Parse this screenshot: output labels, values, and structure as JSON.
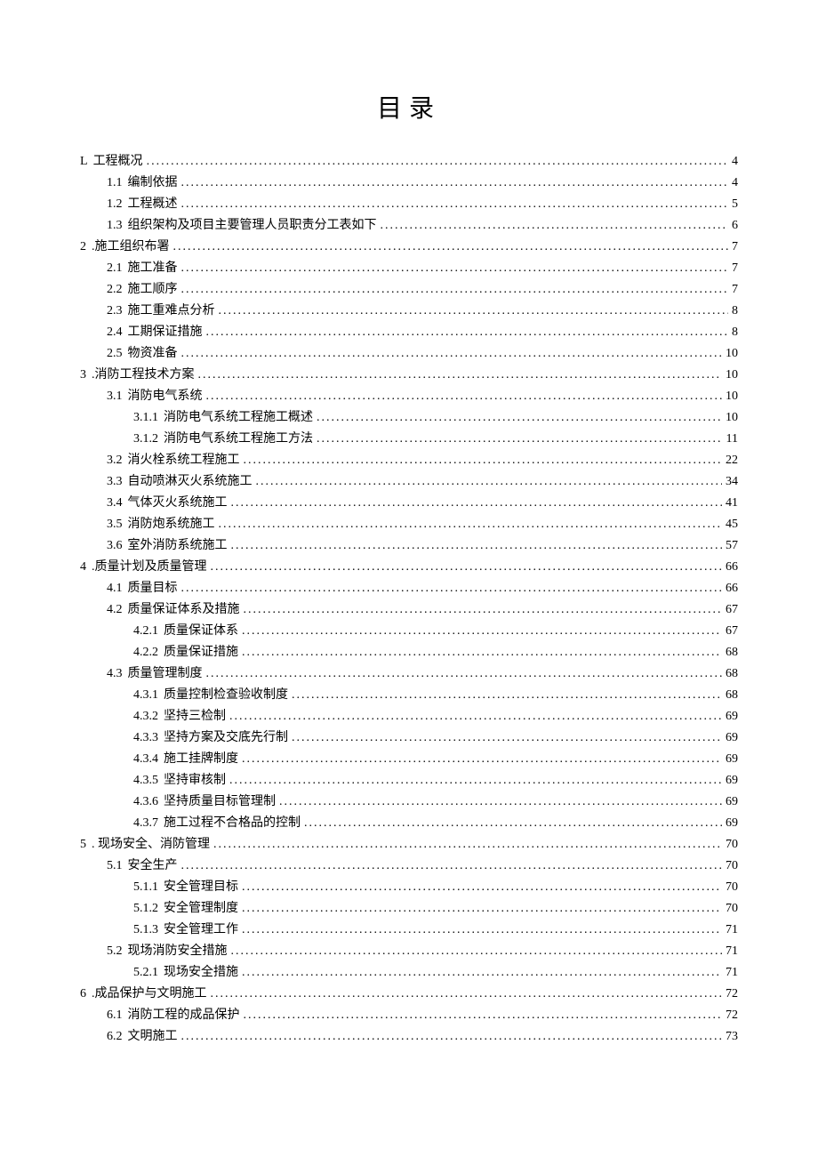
{
  "title": "目录",
  "entries": [
    {
      "level": 0,
      "num": "L",
      "label": "工程概况",
      "page": "4"
    },
    {
      "level": 1,
      "num": "1.1",
      "label": "编制依据",
      "page": "4"
    },
    {
      "level": 1,
      "num": "1.2",
      "label": "工程概述",
      "page": "5"
    },
    {
      "level": 1,
      "num": "1.3",
      "label": "组织架构及项目主要管理人员职责分工表如下",
      "page": "6"
    },
    {
      "level": 0,
      "num": "2",
      "label": ".施工组织布署",
      "page": "7"
    },
    {
      "level": 1,
      "num": "2.1",
      "label": "施工准备",
      "page": "7"
    },
    {
      "level": 1,
      "num": "2.2",
      "label": "施工顺序",
      "page": "7"
    },
    {
      "level": 1,
      "num": "2.3",
      "label": "施工重难点分析",
      "page": "8"
    },
    {
      "level": 1,
      "num": "2.4",
      "label": "工期保证措施",
      "page": "8"
    },
    {
      "level": 1,
      "num": "2.5",
      "label": "物资准备",
      "page": "10"
    },
    {
      "level": 0,
      "num": "3",
      "label": ".消防工程技术方案",
      "page": "10"
    },
    {
      "level": 1,
      "num": "3.1",
      "label": "消防电气系统",
      "page": "10"
    },
    {
      "level": 2,
      "num": "3.1.1",
      "label": "消防电气系统工程施工概述",
      "page": "10"
    },
    {
      "level": 2,
      "num": "3.1.2",
      "label": "消防电气系统工程施工方法",
      "page": "11"
    },
    {
      "level": 1,
      "num": "3.2",
      "label": "消火栓系统工程施工",
      "page": "22"
    },
    {
      "level": 1,
      "num": "3.3",
      "label": "自动喷淋灭火系统施工",
      "page": "34"
    },
    {
      "level": 1,
      "num": "3.4",
      "label": "气体灭火系统施工",
      "page": "41"
    },
    {
      "level": 1,
      "num": "3.5",
      "label": "消防炮系统施工",
      "page": "45"
    },
    {
      "level": 1,
      "num": "3.6",
      "label": "室外消防系统施工",
      "page": "57"
    },
    {
      "level": 0,
      "num": "4",
      "label": ".质量计划及质量管理",
      "page": "66"
    },
    {
      "level": 1,
      "num": "4.1",
      "label": "质量目标",
      "page": "66"
    },
    {
      "level": 1,
      "num": "4.2",
      "label": "质量保证体系及措施",
      "page": "67"
    },
    {
      "level": 2,
      "num": "4.2.1",
      "label": "质量保证体系",
      "page": "67"
    },
    {
      "level": 2,
      "num": "4.2.2",
      "label": "质量保证措施",
      "page": "68"
    },
    {
      "level": 1,
      "num": "4.3",
      "label": "质量管理制度",
      "page": "68"
    },
    {
      "level": 2,
      "num": "4.3.1",
      "label": "质量控制检查验收制度",
      "page": "68"
    },
    {
      "level": 2,
      "num": "4.3.2",
      "label": "坚持三检制",
      "page": "69"
    },
    {
      "level": 2,
      "num": "4.3.3",
      "label": "坚持方案及交底先行制",
      "page": "69"
    },
    {
      "level": 2,
      "num": "4.3.4",
      "label": "施工挂牌制度",
      "page": "69"
    },
    {
      "level": 2,
      "num": "4.3.5",
      "label": "坚持审核制",
      "page": "69"
    },
    {
      "level": 2,
      "num": "4.3.6",
      "label": "坚持质量目标管理制",
      "page": "69"
    },
    {
      "level": 2,
      "num": "4.3.7",
      "label": "施工过程不合格品的控制",
      "page": "69"
    },
    {
      "level": 0,
      "num": "5",
      "label": ". 现场安全、消防管理",
      "page": "70"
    },
    {
      "level": 1,
      "num": "5.1",
      "label": "安全生产",
      "page": "70"
    },
    {
      "level": 2,
      "num": "5.1.1",
      "label": "安全管理目标",
      "page": "70"
    },
    {
      "level": 2,
      "num": "5.1.2",
      "label": "安全管理制度",
      "page": "70"
    },
    {
      "level": 2,
      "num": "5.1.3",
      "label": "安全管理工作",
      "page": "71"
    },
    {
      "level": 1,
      "num": "5.2",
      "label": "现场消防安全措施",
      "page": "71"
    },
    {
      "level": 2,
      "num": "5.2.1",
      "label": "现场安全措施",
      "page": "71"
    },
    {
      "level": 0,
      "num": "6",
      "label": ".成品保护与文明施工",
      "page": "72"
    },
    {
      "level": 1,
      "num": "6.1",
      "label": "消防工程的成品保护",
      "page": "72"
    },
    {
      "level": 1,
      "num": "6.2",
      "label": "文明施工",
      "page": "73"
    }
  ]
}
